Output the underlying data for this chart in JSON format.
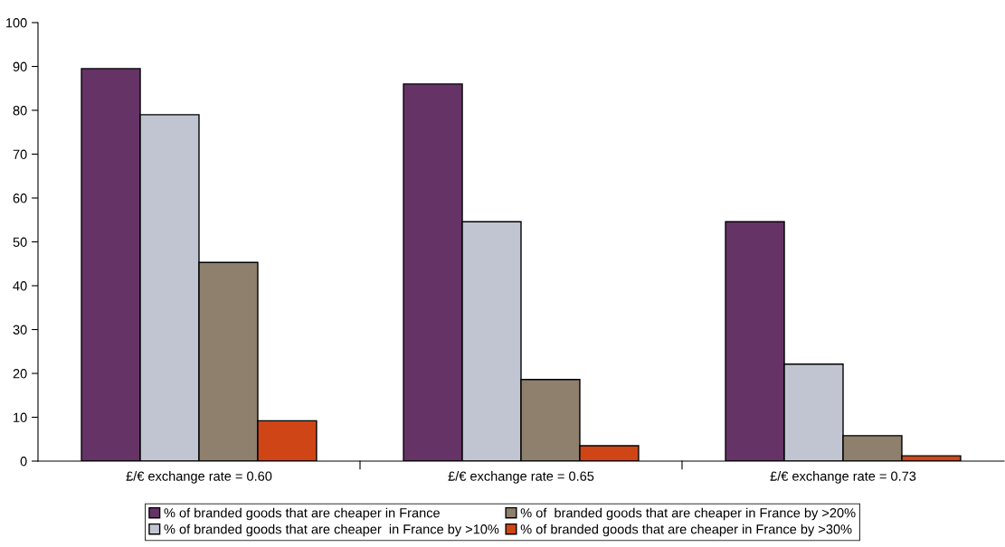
{
  "chart_data": {
    "type": "bar",
    "categories": [
      "£/€ exchange rate = 0.60",
      "£/€ exchange rate = 0.65",
      "£/€ exchange rate = 0.73"
    ],
    "series": [
      {
        "name": "% of branded goods that are cheaper in France",
        "color": "#663366",
        "values": [
          89.5,
          86.0,
          54.6
        ]
      },
      {
        "name": "% of branded goods that are cheaper  in France by >10%",
        "color": "#c0c5d1",
        "values": [
          79.0,
          54.6,
          22.1
        ]
      },
      {
        "name": "% of  branded goods that are cheaper in France by >20%",
        "color": "#8e806c",
        "values": [
          45.3,
          18.6,
          5.8
        ]
      },
      {
        "name": "% of branded goods that are cheaper in France by >30%",
        "color": "#d04516",
        "values": [
          9.2,
          3.5,
          1.2
        ]
      }
    ],
    "ylim": [
      0,
      100
    ],
    "yticks": [
      0,
      10,
      20,
      30,
      40,
      50,
      60,
      70,
      80,
      90,
      100
    ],
    "grid": false,
    "legend": "bottom"
  }
}
